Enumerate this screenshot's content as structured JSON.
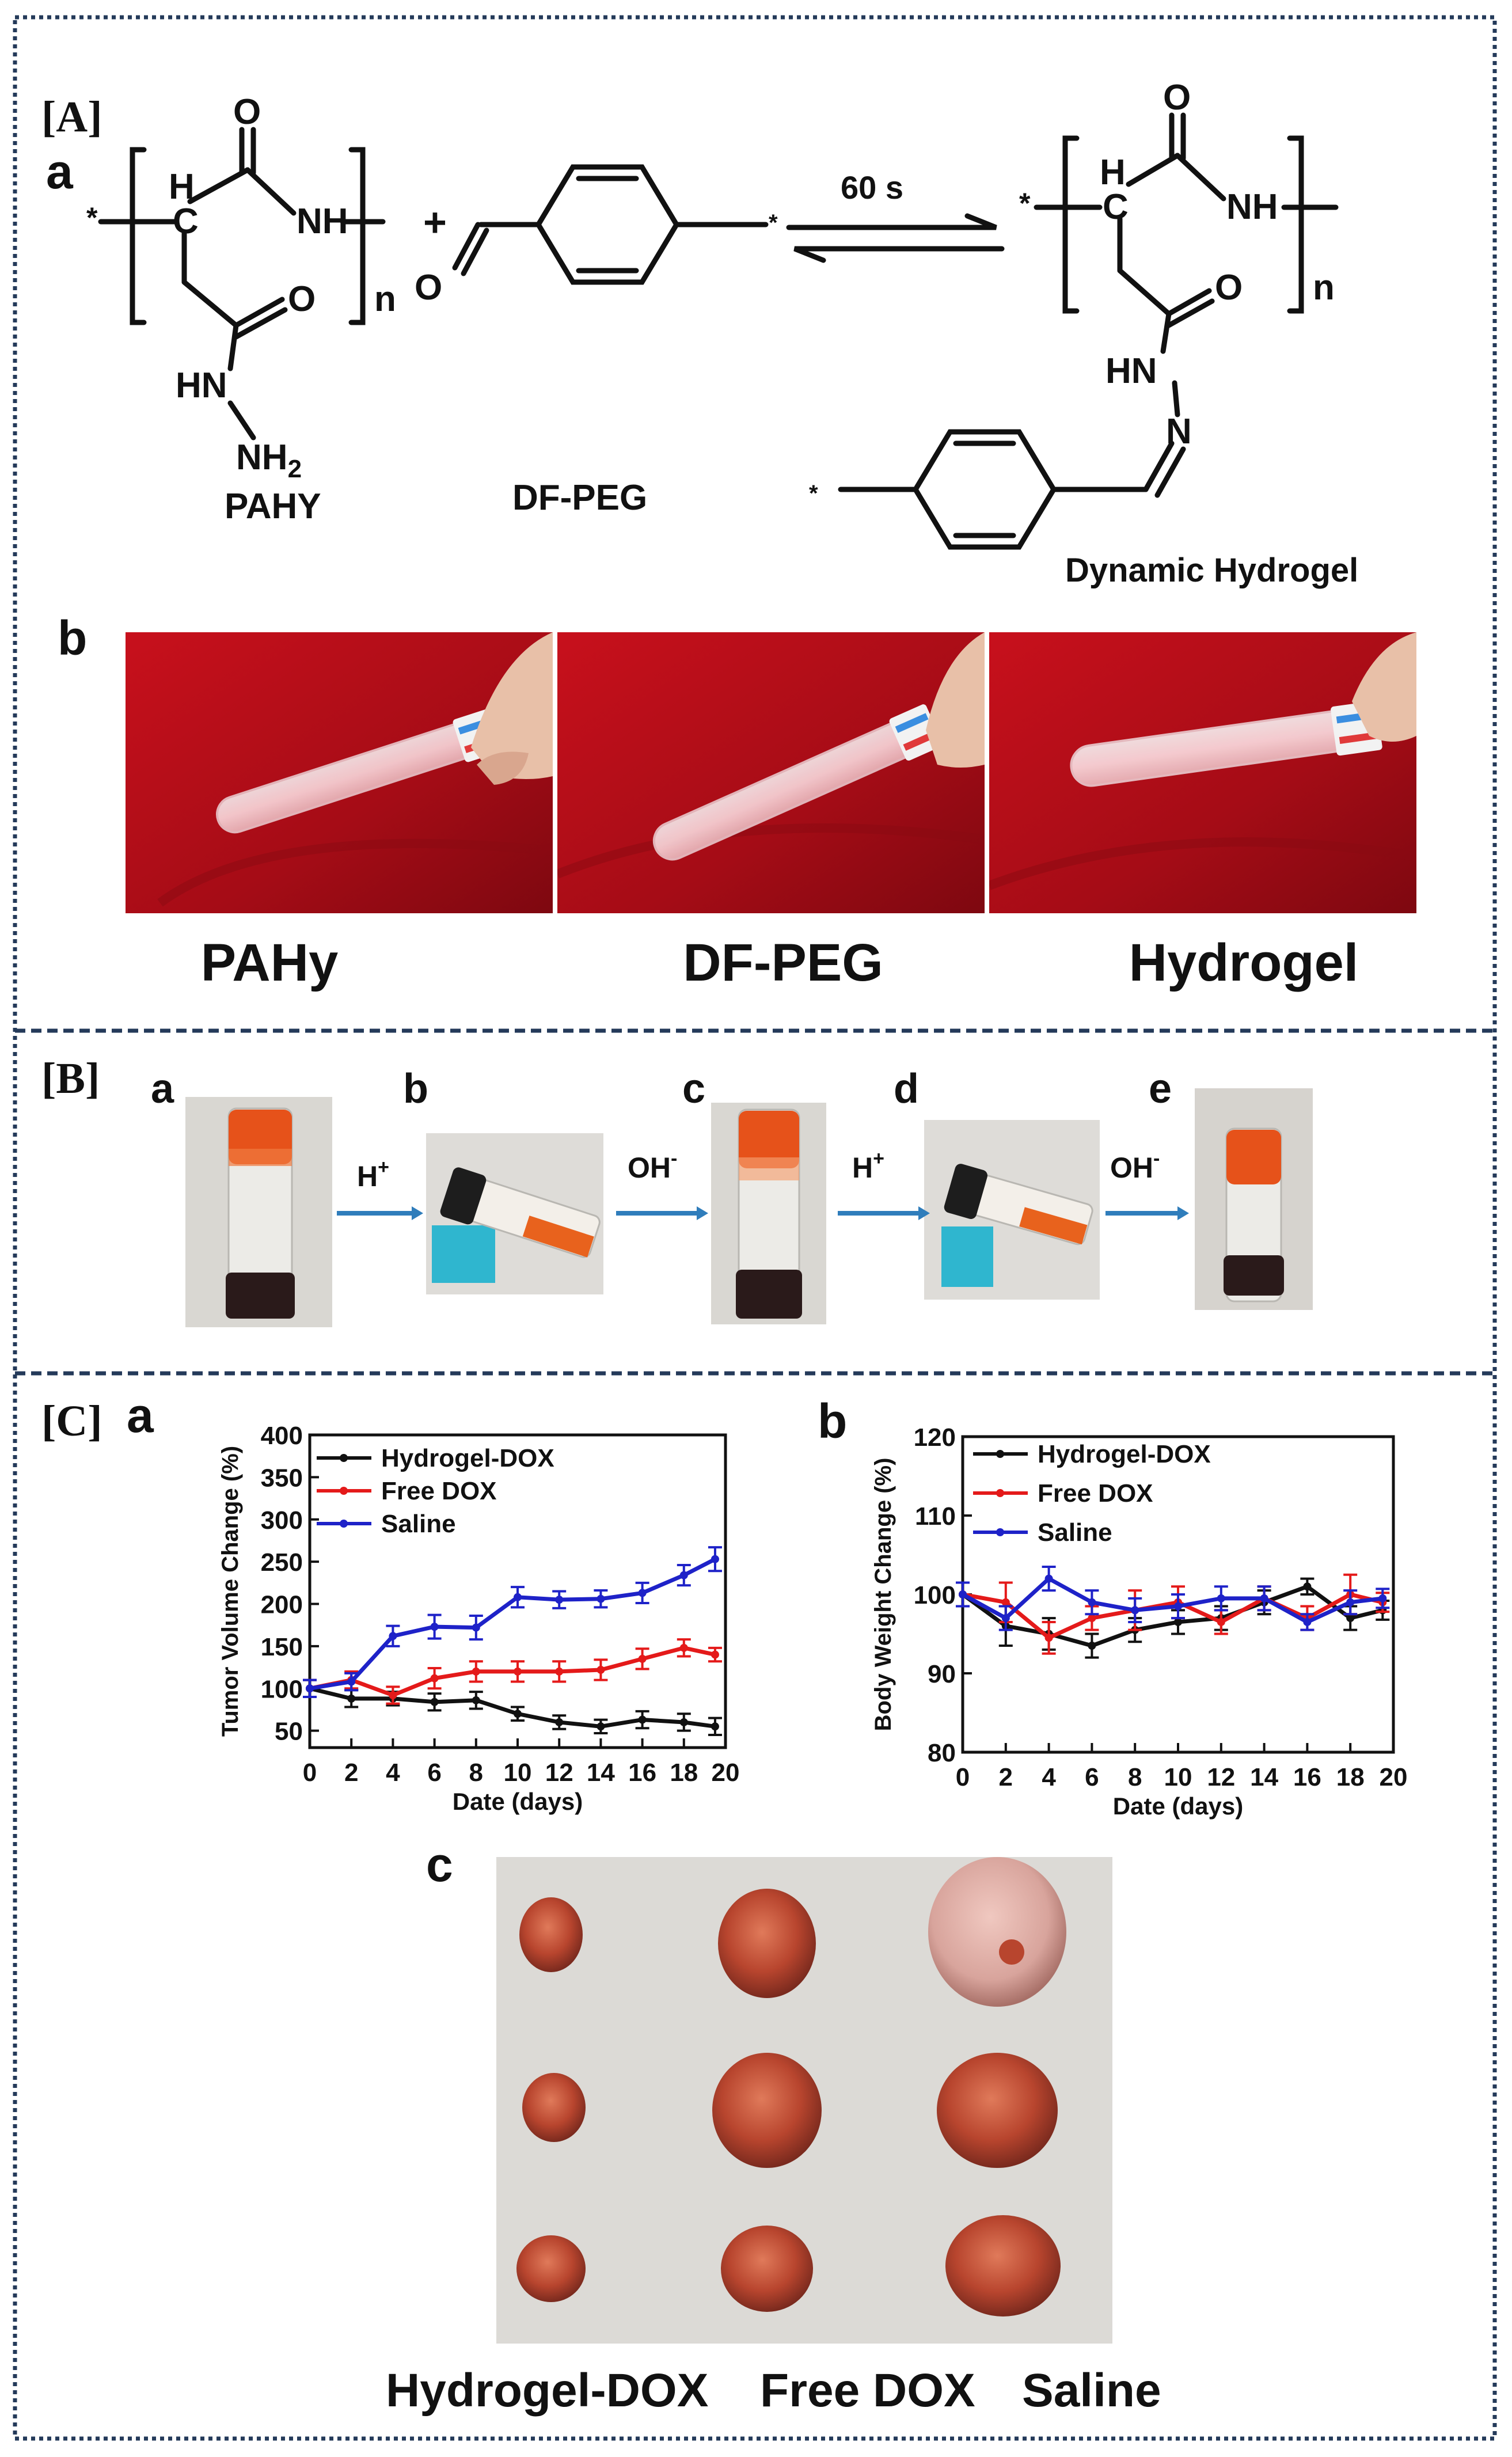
{
  "panels": {
    "A": {
      "label": "[A]",
      "a": {
        "label": "a",
        "arrow_condition": "60 s",
        "reactant1": {
          "name": "PAHY",
          "atoms": {
            "O_top": "O",
            "H": "H",
            "C": "C",
            "NH": "NH",
            "O_side": "O",
            "n": "n",
            "HN": "HN",
            "NH2": "NH",
            "NH2_sub": "2",
            "star": "*"
          }
        },
        "plus": "+",
        "reactant2": {
          "name": "DF-PEG",
          "atoms": {
            "O": "O",
            "star": "*"
          }
        },
        "product": {
          "name": "Dynamic Hydrogel",
          "atoms": {
            "O_top": "O",
            "H": "H",
            "C": "C",
            "NH": "NH",
            "O_side": "O",
            "n": "n",
            "HN": "HN",
            "N": "N",
            "star": "*"
          }
        }
      },
      "b": {
        "label": "b",
        "captions": [
          "PAHy",
          "DF-PEG",
          "Hydrogel"
        ]
      }
    },
    "B": {
      "label": "[B]",
      "steps": [
        {
          "label": "a"
        },
        {
          "label": "b",
          "arrow_before": "H",
          "sup": "+"
        },
        {
          "label": "c",
          "arrow_before": "OH",
          "sup": "-"
        },
        {
          "label": "d",
          "arrow_before": "H",
          "sup": "+"
        },
        {
          "label": "e",
          "arrow_before": "OH",
          "sup": "-"
        }
      ]
    },
    "C": {
      "label": "[C]",
      "a_label": "a",
      "b_label": "b",
      "c_label": "c",
      "c_captions": {
        "group1": "Hydrogel-DOX",
        "group2": "Free DOX",
        "group3": "Saline"
      }
    }
  },
  "chart_data": [
    {
      "type": "line",
      "title": "",
      "xlabel": "Date (days)",
      "ylabel": "Tumor Volume Change (%)",
      "xlim": [
        0,
        20
      ],
      "ylim": [
        30,
        400
      ],
      "x_ticks": [
        0,
        2,
        4,
        6,
        8,
        10,
        12,
        14,
        16,
        18,
        20
      ],
      "y_ticks": [
        50,
        100,
        150,
        200,
        250,
        300,
        350,
        400
      ],
      "x": [
        0,
        2,
        4,
        6,
        8,
        10,
        12,
        14,
        16,
        18,
        19.5
      ],
      "legend_position": "top-left",
      "series": [
        {
          "name": "Hydrogel-DOX",
          "color": "#111111",
          "values": [
            100,
            88,
            88,
            84,
            86,
            70,
            60,
            55,
            63,
            60,
            55
          ],
          "errors": [
            10,
            10,
            8,
            10,
            10,
            8,
            8,
            8,
            10,
            10,
            10
          ]
        },
        {
          "name": "Free DOX",
          "color": "#e41a1a",
          "values": [
            100,
            110,
            92,
            112,
            120,
            120,
            120,
            122,
            135,
            148,
            140
          ],
          "errors": [
            10,
            10,
            10,
            12,
            12,
            12,
            12,
            12,
            12,
            10,
            8
          ]
        },
        {
          "name": "Saline",
          "color": "#1e22c8",
          "values": [
            100,
            108,
            162,
            173,
            172,
            208,
            205,
            206,
            213,
            234,
            253
          ],
          "errors": [
            10,
            10,
            12,
            14,
            14,
            12,
            10,
            10,
            12,
            12,
            14
          ]
        }
      ]
    },
    {
      "type": "line",
      "title": "",
      "xlabel": "Date (days)",
      "ylabel": "Body Weight Change (%)",
      "xlim": [
        0,
        20
      ],
      "ylim": [
        80,
        120
      ],
      "x_ticks": [
        0,
        2,
        4,
        6,
        8,
        10,
        12,
        14,
        16,
        18,
        20
      ],
      "y_ticks": [
        80,
        90,
        100,
        110,
        120
      ],
      "x": [
        0,
        2,
        4,
        6,
        8,
        10,
        12,
        14,
        16,
        18,
        19.5
      ],
      "legend_position": "top-left",
      "series": [
        {
          "name": "Hydrogel-DOX",
          "color": "#111111",
          "values": [
            100,
            96,
            95,
            93.5,
            95.5,
            96.5,
            97,
            99,
            101,
            97,
            98
          ],
          "errors": [
            1.5,
            2.5,
            2,
            1.5,
            1.5,
            1.5,
            1.5,
            1.5,
            1,
            1.5,
            1.2
          ]
        },
        {
          "name": "Free DOX",
          "color": "#e41a1a",
          "values": [
            100,
            99,
            94.5,
            97,
            98,
            99,
            96.5,
            99.5,
            97,
            100,
            99
          ],
          "errors": [
            1.5,
            2.5,
            2,
            1.5,
            2.5,
            2,
            1.5,
            1.5,
            1.5,
            2.5,
            1.2
          ]
        },
        {
          "name": "Saline",
          "color": "#1e22c8",
          "values": [
            100,
            97,
            102,
            99,
            98,
            98.5,
            99.5,
            99.5,
            96.5,
            99,
            99.5
          ],
          "errors": [
            1.5,
            1.5,
            1.5,
            1.5,
            1.5,
            1.5,
            1.5,
            1.5,
            1,
            1.5,
            1.2
          ]
        }
      ]
    }
  ],
  "colors": {
    "frame_border": "#243a5a",
    "photo_red": "#b8141c",
    "gel_orange": "#e85a1c",
    "arrow_blue": "#2f7dbb"
  }
}
